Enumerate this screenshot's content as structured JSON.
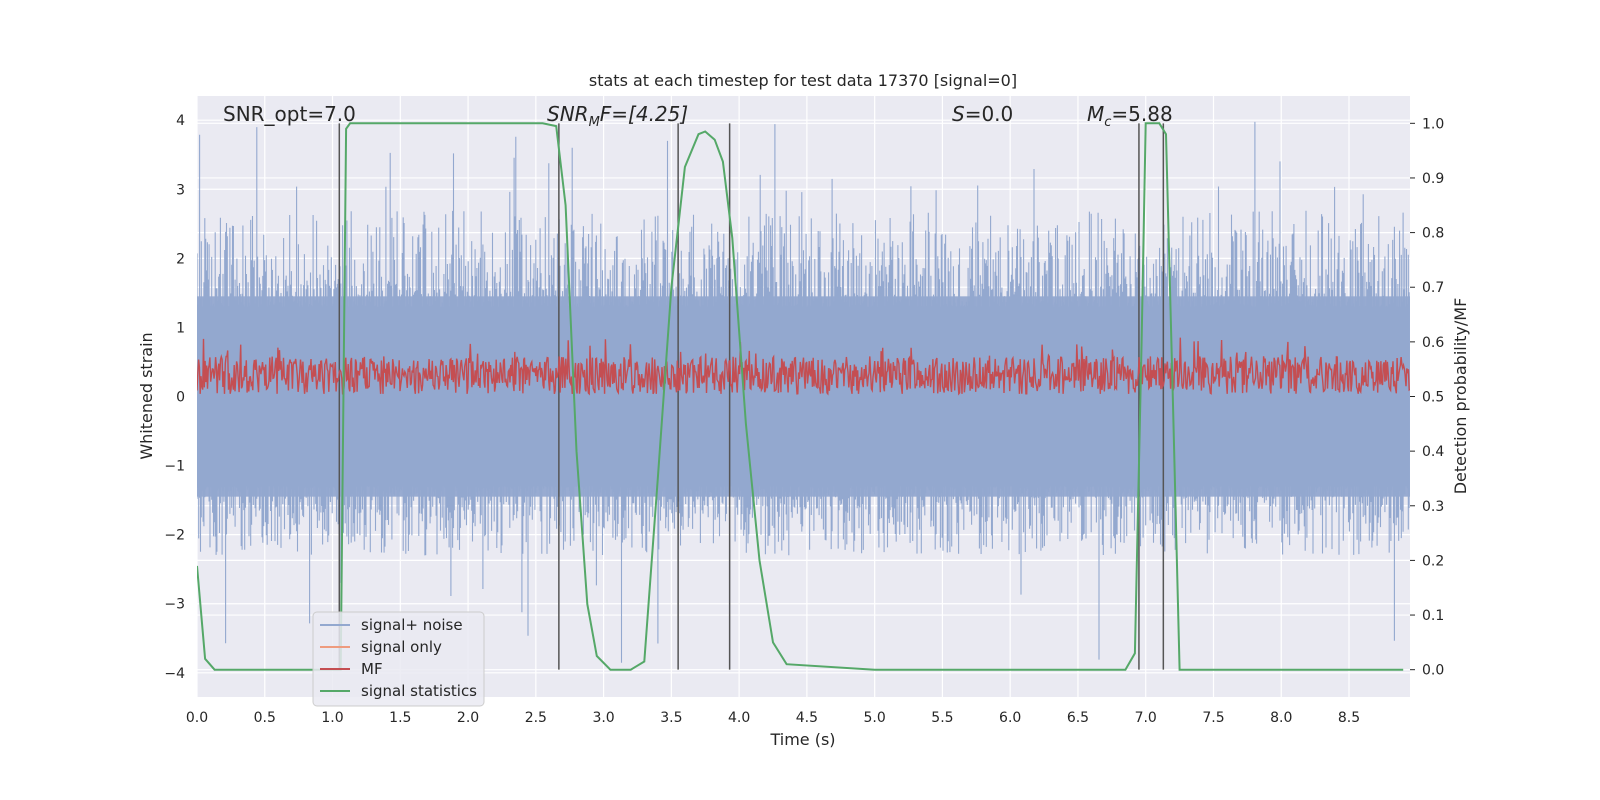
{
  "chart_data": {
    "type": "line",
    "title": "stats at each timestep for test data 17370 [signal=0]",
    "xlabel": "Time (s)",
    "ylabel_left": "Whitened strain",
    "ylabel_right": "Detection probability/MF",
    "xlim": [
      0.0,
      8.95
    ],
    "ylim_left": [
      -4.35,
      4.35
    ],
    "ylim_right": [
      -0.05,
      1.05
    ],
    "x_ticks": [
      "0.0",
      "0.5",
      "1.0",
      "1.5",
      "2.0",
      "2.5",
      "3.0",
      "3.5",
      "4.0",
      "4.5",
      "5.0",
      "5.5",
      "6.0",
      "6.5",
      "7.0",
      "7.5",
      "8.0",
      "8.5"
    ],
    "y_ticks_left": [
      "−4",
      "−3",
      "−2",
      "−1",
      "0",
      "1",
      "2",
      "3",
      "4"
    ],
    "y_ticks_right": [
      "0.0",
      "0.1",
      "0.2",
      "0.3",
      "0.4",
      "0.5",
      "0.6",
      "0.7",
      "0.8",
      "0.9",
      "1.0"
    ],
    "annotations": {
      "snr_opt": "SNR_opt=7.0",
      "snr_mf_base": "SNR",
      "snr_mf_sub": "M",
      "snr_mf_rest": "F=[4.25]",
      "s_base": "S",
      "s_rest": "=0.0",
      "mc_base": "M",
      "mc_sub": "c",
      "mc_rest": "=5.88"
    },
    "vertical_lines": [
      1.05,
      2.67,
      3.55,
      3.93,
      6.95,
      7.13
    ],
    "series": [
      {
        "name": "signal+ noise",
        "color": "#93a8cf",
        "axis": "left",
        "band": [
          -2.3,
          2.7
        ],
        "peak_max": 4.0,
        "peak_min": -3.95
      },
      {
        "name": "signal only",
        "color": "#ee9b7e",
        "axis": "left",
        "values": []
      },
      {
        "name": "MF",
        "color": "#c44e52",
        "axis": "right",
        "band": [
          0.505,
          0.62
        ],
        "peak_max": 0.61
      },
      {
        "name": "signal statistics",
        "color": "#55a868",
        "axis": "right",
        "x": [
          0.0,
          0.06,
          0.13,
          0.2,
          0.5,
          0.8,
          1.0,
          1.06,
          1.1,
          1.13,
          1.5,
          2.0,
          2.55,
          2.65,
          2.72,
          2.8,
          2.88,
          2.95,
          3.05,
          3.2,
          3.3,
          3.4,
          3.5,
          3.6,
          3.7,
          3.75,
          3.82,
          3.88,
          3.95,
          4.05,
          4.15,
          4.25,
          4.35,
          5.0,
          6.0,
          6.85,
          6.92,
          6.97,
          7.0,
          7.1,
          7.15,
          7.2,
          7.25,
          8.0,
          8.9
        ],
        "values": [
          0.19,
          0.02,
          0.0,
          0.0,
          0.0,
          0.0,
          0.0,
          0.0,
          0.99,
          1.0,
          1.0,
          1.0,
          1.0,
          0.995,
          0.85,
          0.4,
          0.12,
          0.025,
          0.0,
          0.0,
          0.015,
          0.35,
          0.7,
          0.92,
          0.98,
          0.985,
          0.97,
          0.93,
          0.79,
          0.45,
          0.2,
          0.05,
          0.01,
          0.0,
          0.0,
          0.0,
          0.03,
          0.6,
          1.0,
          1.0,
          0.98,
          0.5,
          0.0,
          0.0,
          0.0
        ]
      }
    ],
    "legend": {
      "placement": "lower-left",
      "entries": [
        "signal+ noise",
        "signal only",
        "MF",
        "signal statistics"
      ]
    }
  }
}
